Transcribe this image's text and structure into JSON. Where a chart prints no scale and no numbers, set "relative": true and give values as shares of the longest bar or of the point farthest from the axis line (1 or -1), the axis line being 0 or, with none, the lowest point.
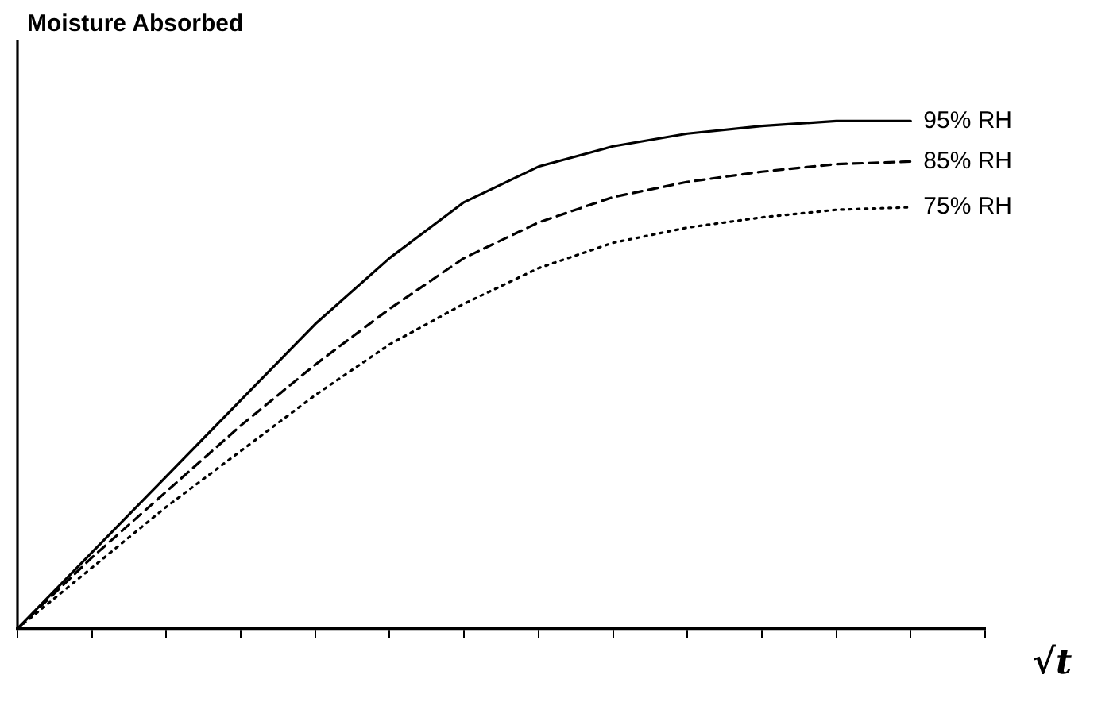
{
  "chart_data": {
    "type": "line",
    "relative": true,
    "ylabel": "Moisture Absorbed",
    "xlabel": "√t",
    "legend": false,
    "grid": false,
    "marker": "none",
    "categories": [
      null,
      null,
      null,
      null,
      null,
      null,
      null,
      null,
      null,
      null,
      null,
      null,
      null,
      null
    ],
    "series": [
      {
        "name": "95% RH",
        "color": "#000000",
        "line_style": "solid",
        "values": [
          0,
          0.15,
          0.3,
          0.45,
          0.6,
          0.73,
          0.84,
          0.91,
          0.95,
          0.975,
          0.99,
          1.0,
          1.0,
          null
        ]
      },
      {
        "name": "85% RH",
        "color": "#000000",
        "line_style": "dashed",
        "values": [
          0,
          0.14,
          0.27,
          0.4,
          0.52,
          0.63,
          0.73,
          0.8,
          0.85,
          0.88,
          0.9,
          0.915,
          0.92,
          null
        ]
      },
      {
        "name": "75% RH",
        "color": "#000000",
        "line_style": "dotted",
        "values": [
          0,
          0.12,
          0.24,
          0.35,
          0.46,
          0.56,
          0.64,
          0.71,
          0.76,
          0.79,
          0.81,
          0.825,
          0.83,
          null
        ]
      }
    ]
  }
}
